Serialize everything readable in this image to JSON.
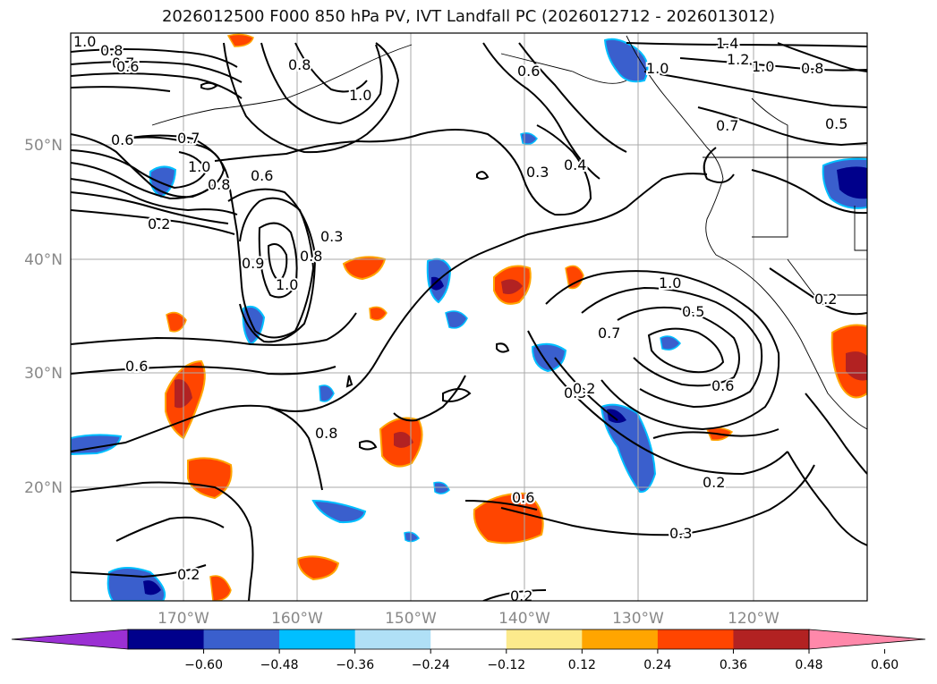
{
  "title": "2026012500 F000 850 hPa PV, IVT Landfall PC (2026012712 - 2026013012)",
  "lon_labels": [
    "170°W",
    "160°W",
    "150°W",
    "140°W",
    "130°W",
    "120°W"
  ],
  "lat_labels": [
    "50°N",
    "40°N",
    "30°N",
    "20°N"
  ],
  "contour_labels": [
    "1.0",
    "0.8",
    "0.7",
    "0.6",
    "0.8",
    "1.0",
    "0.6",
    "0.7",
    "1.0",
    "0.8",
    "0.2",
    "0.6",
    "0.6",
    "0.3",
    "0.4",
    "1.0",
    "1.4",
    "1.2",
    "1.0",
    "0.8",
    "0.7",
    "0.5",
    "0.3",
    "1.0",
    "0.9",
    "0.8",
    "1.0",
    "0.5",
    "0.7",
    "0.6",
    "0.3",
    "0.6",
    "0.8",
    "0.2",
    "0.2",
    "0.6",
    "0.3",
    "0.2",
    "0.2",
    "0.2"
  ],
  "colorbar": {
    "colors": [
      "#9b30d3",
      "#00008b",
      "#3a5fcd",
      "#00bfff",
      "#b0e0f6",
      "#ffffff",
      "#fcea8c",
      "#ffa500",
      "#ff4500",
      "#b22222",
      "#ff88aa"
    ],
    "ticks": [
      "−0.60",
      "−0.48",
      "−0.36",
      "−0.24",
      "−0.12",
      "0.12",
      "0.24",
      "0.36",
      "0.48",
      "0.60"
    ]
  }
}
